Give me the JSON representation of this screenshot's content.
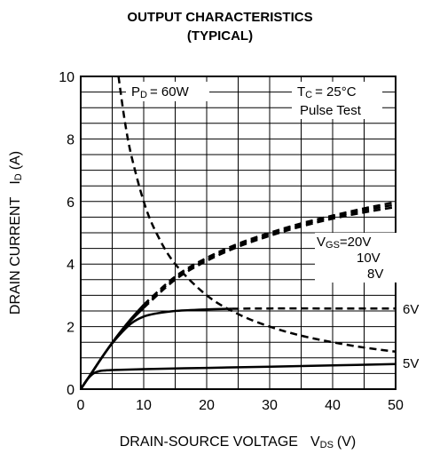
{
  "chart_data": {
    "type": "line",
    "title": "OUTPUT CHARACTERISTICS",
    "subtitle": "(TYPICAL)",
    "xlabel": {
      "main": "DRAIN-SOURCE VOLTAGE",
      "sym": "V",
      "sub": "DS",
      "unit": "(V)"
    },
    "ylabel": {
      "main": "DRAIN CURRENT",
      "sym": "I",
      "sub": "D",
      "unit": "(A)"
    },
    "xlim": [
      0,
      50
    ],
    "ylim": [
      0,
      10
    ],
    "xticks": [
      "0",
      "10",
      "20",
      "30",
      "40",
      "50"
    ],
    "yticks": [
      "0",
      "2",
      "4",
      "6",
      "8",
      "10"
    ],
    "grid": true,
    "annotations": {
      "pd_sym": "P",
      "pd_sub": "D",
      "pd_val": "= 60W",
      "tc_sym": "T",
      "tc_sub": "C",
      "tc_val": "= 25°C",
      "pulse": "Pulse Test",
      "vgs_sym": "V",
      "vgs_sub": "GS",
      "vgs_val": "=20V"
    },
    "series": [
      {
        "name": "20V",
        "style": "solid-then-dashed",
        "split_x": 10,
        "x": [
          0,
          2,
          4,
          6,
          8,
          10,
          15,
          20,
          25,
          30,
          35,
          40,
          45,
          50
        ],
        "y": [
          0,
          0.6,
          1.2,
          1.75,
          2.25,
          2.7,
          3.6,
          4.2,
          4.65,
          5.0,
          5.3,
          5.55,
          5.78,
          5.98
        ]
      },
      {
        "name": "10V",
        "style": "solid-then-dashed",
        "split_x": 10,
        "x": [
          0,
          2,
          4,
          6,
          8,
          10,
          15,
          20,
          25,
          30,
          35,
          40,
          45,
          50
        ],
        "y": [
          0,
          0.6,
          1.2,
          1.75,
          2.25,
          2.65,
          3.55,
          4.15,
          4.6,
          4.95,
          5.25,
          5.5,
          5.72,
          5.9
        ]
      },
      {
        "name": "8V",
        "style": "solid-then-dashed",
        "split_x": 10,
        "x": [
          0,
          2,
          4,
          6,
          8,
          10,
          15,
          20,
          25,
          30,
          35,
          40,
          45,
          50
        ],
        "y": [
          0,
          0.6,
          1.2,
          1.75,
          2.2,
          2.6,
          3.5,
          4.1,
          4.55,
          4.9,
          5.2,
          5.45,
          5.65,
          5.82
        ]
      },
      {
        "name": "6V",
        "style": "solid-then-dashed",
        "split_x": 24,
        "x": [
          0,
          2,
          4,
          6,
          8,
          10,
          12,
          15,
          20,
          24,
          30,
          40,
          50
        ],
        "y": [
          0,
          0.6,
          1.2,
          1.7,
          2.1,
          2.32,
          2.42,
          2.5,
          2.55,
          2.57,
          2.58,
          2.58,
          2.58
        ]
      },
      {
        "name": "5V",
        "style": "solid",
        "x": [
          0,
          1,
          2,
          3,
          4,
          5,
          10,
          20,
          30,
          40,
          50
        ],
        "y": [
          0,
          0.3,
          0.5,
          0.58,
          0.6,
          0.61,
          0.64,
          0.68,
          0.72,
          0.76,
          0.8
        ]
      },
      {
        "name": "PD = 60W",
        "style": "dashed",
        "x": [
          6,
          7,
          8,
          10,
          12,
          15,
          20,
          25,
          30,
          35,
          40,
          45,
          50
        ],
        "y": [
          10,
          8.57,
          7.5,
          6.0,
          5.0,
          4.0,
          3.0,
          2.4,
          2.0,
          1.71,
          1.5,
          1.33,
          1.2
        ]
      }
    ],
    "line_labels": [
      {
        "text": "10V"
      },
      {
        "text": "8V"
      },
      {
        "text": "6V"
      },
      {
        "text": "5V"
      }
    ]
  }
}
